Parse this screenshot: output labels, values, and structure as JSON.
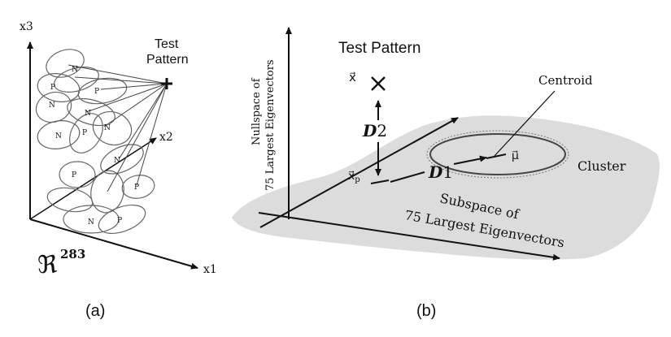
{
  "panel_a": {
    "axis_x1": "x1",
    "axis_x2": "x2",
    "axis_x3": "x3",
    "test_pattern_line1": "Test",
    "test_pattern_line2": "Pattern",
    "space_symbol": "ℜ",
    "space_exponent": "283",
    "caption": "(a)",
    "ellipse_labels": [
      "N",
      "P",
      "N",
      "P",
      "N",
      "N",
      "P",
      "N",
      "P",
      "N",
      "P",
      "N",
      "P"
    ]
  },
  "panel_b": {
    "test_pattern": "Test Pattern",
    "x_label": "x⃗",
    "xp_label": "x⃗",
    "xp_sub": "p",
    "mu_label": "μ⃗",
    "d2_label": "D",
    "d2_sub": "2",
    "d1_label": "D",
    "d1_sub": "1",
    "centroid": "Centroid",
    "cluster": "Cluster",
    "nullspace_line1": "Nullspace of",
    "nullspace_line2": "75 Largest Eigenvectors",
    "subspace_line1": "Subspace of",
    "subspace_line2": "75 Largest Eigenvectors",
    "caption": "(b)"
  }
}
